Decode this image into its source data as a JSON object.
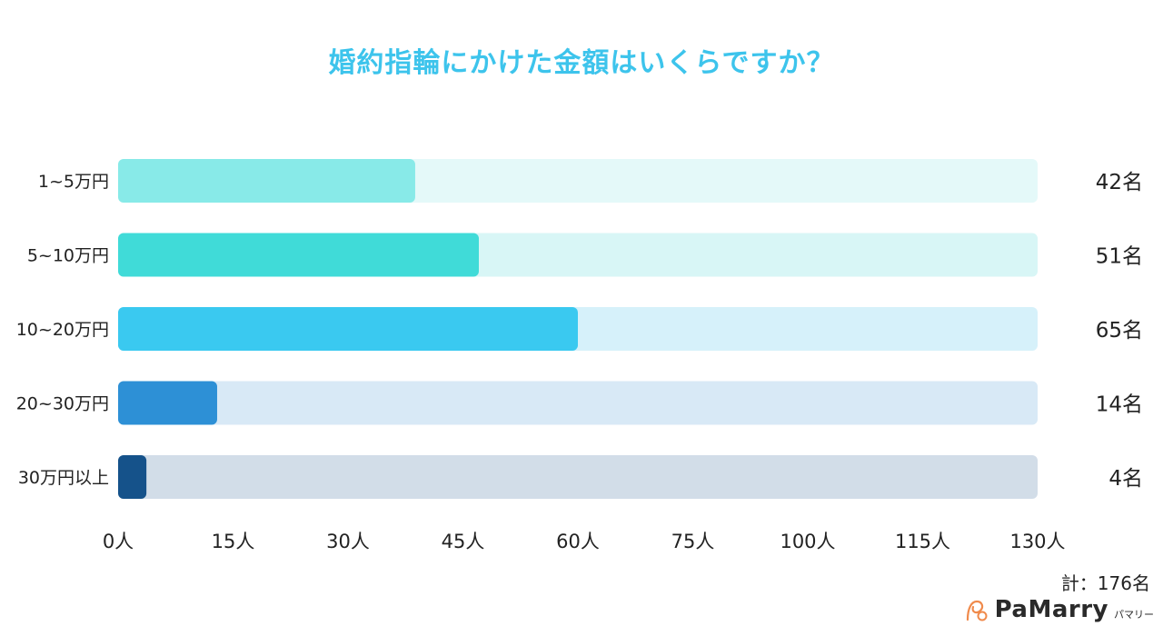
{
  "title": "婚約指輪にかけた金額はいくらですか？",
  "total_label": "計：176名",
  "brand": {
    "name": "PaMarry",
    "kana": "パマリー",
    "mark_icon": "ring-swirl-icon"
  },
  "chart_data": {
    "type": "bar",
    "orientation": "horizontal",
    "categories": [
      "1~5万円",
      "5~10万円",
      "10~20万円",
      "20~30万円",
      "30万円以上"
    ],
    "values": [
      42,
      51,
      65,
      14,
      4
    ],
    "value_labels": [
      "42名",
      "51名",
      "65名",
      "14名",
      "4名"
    ],
    "xlim": [
      0,
      130
    ],
    "x_ticks": [
      0,
      15,
      30,
      45,
      60,
      75,
      100,
      115,
      130
    ],
    "x_tick_labels": [
      "0人",
      "15人",
      "30人",
      "45人",
      "60人",
      "75人",
      "100人",
      "115人",
      "130人"
    ],
    "grid": false,
    "bar_colors": [
      "#88eae8",
      "#40dbd8",
      "#3ac9f0",
      "#2d90d6",
      "#15528a"
    ],
    "track_colors": [
      "#e4f9f9",
      "#d8f6f6",
      "#d6f1fa",
      "#d8e9f6",
      "#d2dde8"
    ]
  }
}
